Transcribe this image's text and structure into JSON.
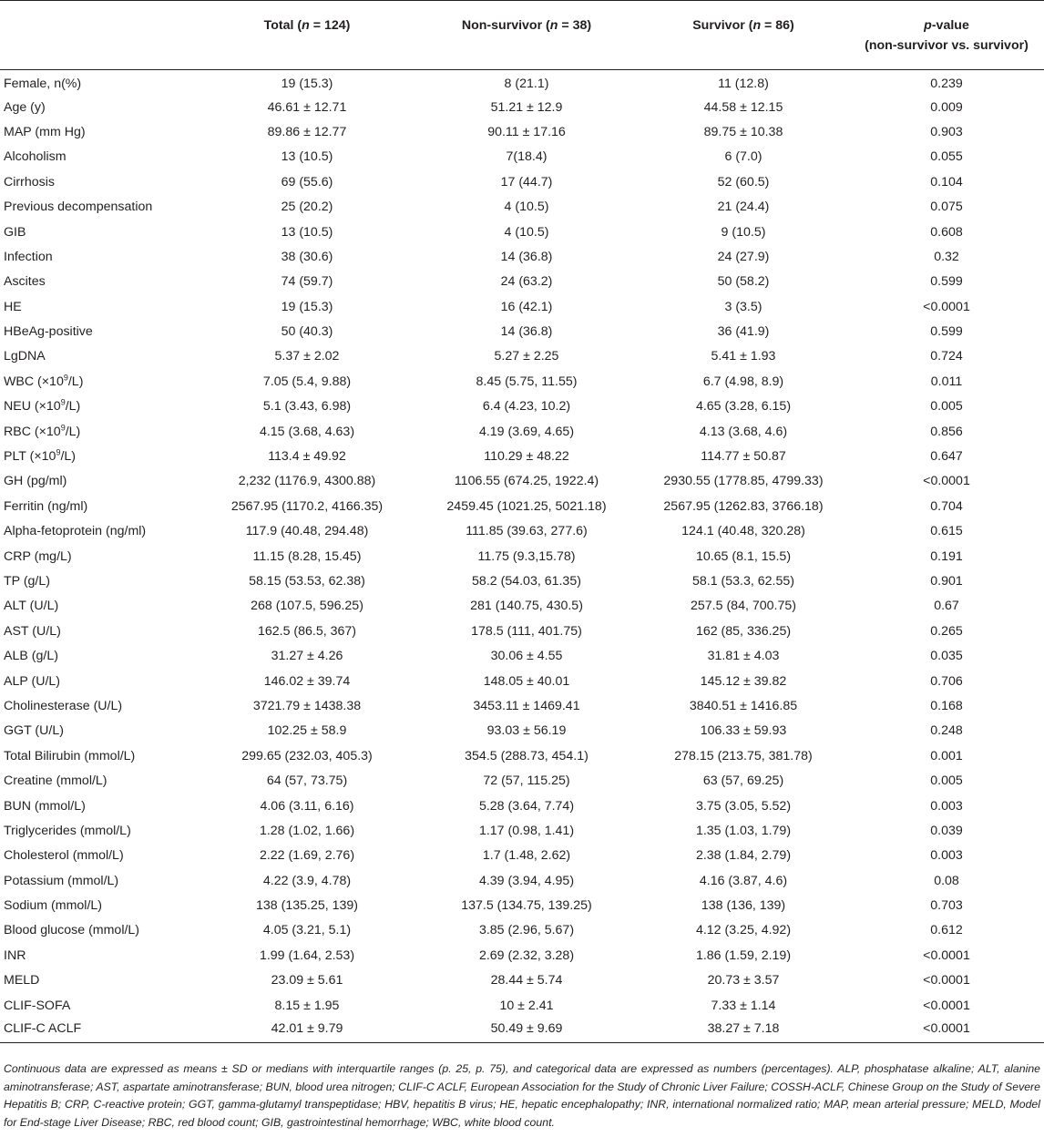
{
  "table": {
    "headers": [
      {
        "pre": "",
        "italic": "",
        "post": "",
        "line2": ""
      },
      {
        "pre": "Total (",
        "italic": "n",
        "post": " = 124)",
        "line2": ""
      },
      {
        "pre": "Non-survivor (",
        "italic": "n",
        "post": " = 38)",
        "line2": ""
      },
      {
        "pre": "Survivor (",
        "italic": "n",
        "post": " = 86)",
        "line2": ""
      },
      {
        "pre": "",
        "italic": "p",
        "post": "-value",
        "line2": "(non-survivor vs. survivor)"
      }
    ],
    "rows": [
      {
        "label": "Female, n(%)",
        "total": "19 (15.3)",
        "non_survivor": "8 (21.1)",
        "survivor": "11 (12.8)",
        "p": "0.239"
      },
      {
        "label": "Age (y)",
        "total": "46.61 ± 12.71",
        "non_survivor": "51.21 ± 12.9",
        "survivor": "44.58 ± 12.15",
        "p": "0.009"
      },
      {
        "label": "MAP (mm Hg)",
        "total": "89.86 ± 12.77",
        "non_survivor": "90.11 ± 17.16",
        "survivor": "89.75 ± 10.38",
        "p": "0.903"
      },
      {
        "label": "Alcoholism",
        "total": "13 (10.5)",
        "non_survivor": "7(18.4)",
        "survivor": "6 (7.0)",
        "p": "0.055"
      },
      {
        "label": "Cirrhosis",
        "total": "69 (55.6)",
        "non_survivor": "17 (44.7)",
        "survivor": "52 (60.5)",
        "p": "0.104"
      },
      {
        "label": "Previous decompensation",
        "total": "25 (20.2)",
        "non_survivor": "4 (10.5)",
        "survivor": "21 (24.4)",
        "p": "0.075"
      },
      {
        "label": "GIB",
        "total": "13 (10.5)",
        "non_survivor": "4 (10.5)",
        "survivor": "9 (10.5)",
        "p": "0.608"
      },
      {
        "label": "Infection",
        "total": "38 (30.6)",
        "non_survivor": "14 (36.8)",
        "survivor": "24 (27.9)",
        "p": "0.32"
      },
      {
        "label": "Ascites",
        "total": "74 (59.7)",
        "non_survivor": "24 (63.2)",
        "survivor": "50 (58.2)",
        "p": "0.599"
      },
      {
        "label": "HE",
        "total": "19 (15.3)",
        "non_survivor": "16 (42.1)",
        "survivor": "3 (3.5)",
        "p": "<0.0001"
      },
      {
        "label": "HBeAg-positive",
        "total": "50 (40.3)",
        "non_survivor": "14 (36.8)",
        "survivor": "36 (41.9)",
        "p": "0.599"
      },
      {
        "label": "LgDNA",
        "total": "5.37 ± 2.02",
        "non_survivor": "5.27 ± 2.25",
        "survivor": "5.41 ± 1.93",
        "p": "0.724"
      },
      {
        "label": "WBC (×10",
        "sup": "9",
        "label_post": "/L)",
        "total": "7.05 (5.4, 9.88)",
        "non_survivor": "8.45 (5.75, 11.55)",
        "survivor": "6.7 (4.98, 8.9)",
        "p": "0.011"
      },
      {
        "label": "NEU (×10",
        "sup": "9",
        "label_post": "/L)",
        "total": "5.1 (3.43, 6.98)",
        "non_survivor": "6.4 (4.23, 10.2)",
        "survivor": "4.65 (3.28, 6.15)",
        "p": "0.005"
      },
      {
        "label": "RBC (×10",
        "sup": "9",
        "label_post": "/L)",
        "total": "4.15 (3.68, 4.63)",
        "non_survivor": "4.19 (3.69, 4.65)",
        "survivor": "4.13 (3.68, 4.6)",
        "p": "0.856"
      },
      {
        "label": "PLT (×10",
        "sup": "9",
        "label_post": "/L)",
        "total": "113.4 ± 49.92",
        "non_survivor": "110.29 ± 48.22",
        "survivor": "114.77 ± 50.87",
        "p": "0.647"
      },
      {
        "label": "GH (pg/ml)",
        "total": "2,232 (1176.9, 4300.88)",
        "non_survivor": "1106.55 (674.25, 1922.4)",
        "survivor": "2930.55 (1778.85, 4799.33)",
        "p": "<0.0001"
      },
      {
        "label": "Ferritin (ng/ml)",
        "total": "2567.95 (1170.2, 4166.35)",
        "non_survivor": "2459.45 (1021.25, 5021.18)",
        "survivor": "2567.95 (1262.83, 3766.18)",
        "p": "0.704"
      },
      {
        "label": "Alpha-fetoprotein (ng/ml)",
        "total": "117.9 (40.48, 294.48)",
        "non_survivor": "111.85 (39.63, 277.6)",
        "survivor": "124.1 (40.48, 320.28)",
        "p": "0.615"
      },
      {
        "label": "CRP (mg/L)",
        "total": "11.15 (8.28, 15.45)",
        "non_survivor": "11.75 (9.3,15.78)",
        "survivor": "10.65 (8.1, 15.5)",
        "p": "0.191"
      },
      {
        "label": "TP (g/L)",
        "total": "58.15 (53.53, 62.38)",
        "non_survivor": "58.2 (54.03, 61.35)",
        "survivor": "58.1 (53.3, 62.55)",
        "p": "0.901"
      },
      {
        "label": "ALT (U/L)",
        "total": "268 (107.5, 596.25)",
        "non_survivor": "281 (140.75, 430.5)",
        "survivor": "257.5 (84, 700.75)",
        "p": "0.67"
      },
      {
        "label": "AST (U/L)",
        "total": "162.5 (86.5, 367)",
        "non_survivor": "178.5 (111, 401.75)",
        "survivor": "162 (85, 336.25)",
        "p": "0.265"
      },
      {
        "label": "ALB (g/L)",
        "total": "31.27 ± 4.26",
        "non_survivor": "30.06 ± 4.55",
        "survivor": "31.81 ± 4.03",
        "p": "0.035"
      },
      {
        "label": "ALP (U/L)",
        "total": "146.02 ± 39.74",
        "non_survivor": "148.05 ± 40.01",
        "survivor": "145.12 ± 39.82",
        "p": "0.706"
      },
      {
        "label": "Cholinesterase (U/L)",
        "total": "3721.79 ± 1438.38",
        "non_survivor": "3453.11 ± 1469.41",
        "survivor": "3840.51 ± 1416.85",
        "p": "0.168"
      },
      {
        "label": "GGT (U/L)",
        "total": "102.25 ± 58.9",
        "non_survivor": "93.03 ± 56.19",
        "survivor": "106.33 ± 59.93",
        "p": "0.248"
      },
      {
        "label": "Total Bilirubin (mmol/L)",
        "total": "299.65 (232.03, 405.3)",
        "non_survivor": "354.5 (288.73, 454.1)",
        "survivor": "278.15 (213.75, 381.78)",
        "p": "0.001"
      },
      {
        "label": "Creatine (mmol/L)",
        "total": "64 (57, 73.75)",
        "non_survivor": "72 (57, 115.25)",
        "survivor": "63 (57, 69.25)",
        "p": "0.005"
      },
      {
        "label": "BUN (mmol/L)",
        "total": "4.06 (3.11, 6.16)",
        "non_survivor": "5.28 (3.64, 7.74)",
        "survivor": "3.75 (3.05, 5.52)",
        "p": "0.003"
      },
      {
        "label": "Triglycerides (mmol/L)",
        "total": "1.28 (1.02, 1.66)",
        "non_survivor": "1.17 (0.98, 1.41)",
        "survivor": "1.35 (1.03, 1.79)",
        "p": "0.039"
      },
      {
        "label": "Cholesterol (mmol/L)",
        "total": "2.22 (1.69, 2.76)",
        "non_survivor": "1.7 (1.48, 2.62)",
        "survivor": "2.38 (1.84, 2.79)",
        "p": "0.003"
      },
      {
        "label": "Potassium (mmol/L)",
        "total": "4.22 (3.9, 4.78)",
        "non_survivor": "4.39 (3.94, 4.95)",
        "survivor": "4.16 (3.87, 4.6)",
        "p": "0.08"
      },
      {
        "label": "Sodium (mmol/L)",
        "total": "138 (135.25, 139)",
        "non_survivor": "137.5 (134.75, 139.25)",
        "survivor": "138 (136, 139)",
        "p": "0.703"
      },
      {
        "label": "Blood glucose (mmol/L)",
        "total": "4.05 (3.21, 5.1)",
        "non_survivor": "3.85 (2.96, 5.67)",
        "survivor": "4.12 (3.25, 4.92)",
        "p": "0.612"
      },
      {
        "label": "INR",
        "total": "1.99 (1.64, 2.53)",
        "non_survivor": "2.69 (2.32, 3.28)",
        "survivor": "1.86 (1.59, 2.19)",
        "p": "<0.0001"
      },
      {
        "label": "MELD",
        "total": "23.09 ± 5.61",
        "non_survivor": "28.44 ± 5.74",
        "survivor": "20.73 ± 3.57",
        "p": "<0.0001"
      },
      {
        "label": "CLIF-SOFA",
        "total": "8.15 ± 1.95",
        "non_survivor": "10 ± 2.41",
        "survivor": "7.33 ± 1.14",
        "p": "<0.0001"
      },
      {
        "label": "CLIF-C ACLF",
        "total": "42.01 ± 9.79",
        "non_survivor": "50.49 ± 9.69",
        "survivor": "38.27 ± 7.18",
        "p": "<0.0001"
      }
    ]
  },
  "footnote": "Continuous data are expressed as means ± SD or medians with interquartile ranges (p. 25, p. 75), and categorical data are expressed as numbers (percentages). ALP, phosphatase alkaline; ALT, alanine aminotransferase; AST, aspartate aminotransferase; BUN, blood urea nitrogen; CLIF-C ACLF, European Association for the Study of Chronic Liver Failure; COSSH-ACLF, Chinese Group on the Study of Severe Hepatitis B; CRP, C-reactive protein; GGT, gamma-glutamyl transpeptidase; HBV, hepatitis B virus; HE, hepatic encephalopathy; INR, international normalized ratio; MAP, mean arterial pressure; MELD, Model for End-stage Liver Disease; RBC, red blood count; GIB, gastrointestinal hemorrhage; WBC, white blood count."
}
